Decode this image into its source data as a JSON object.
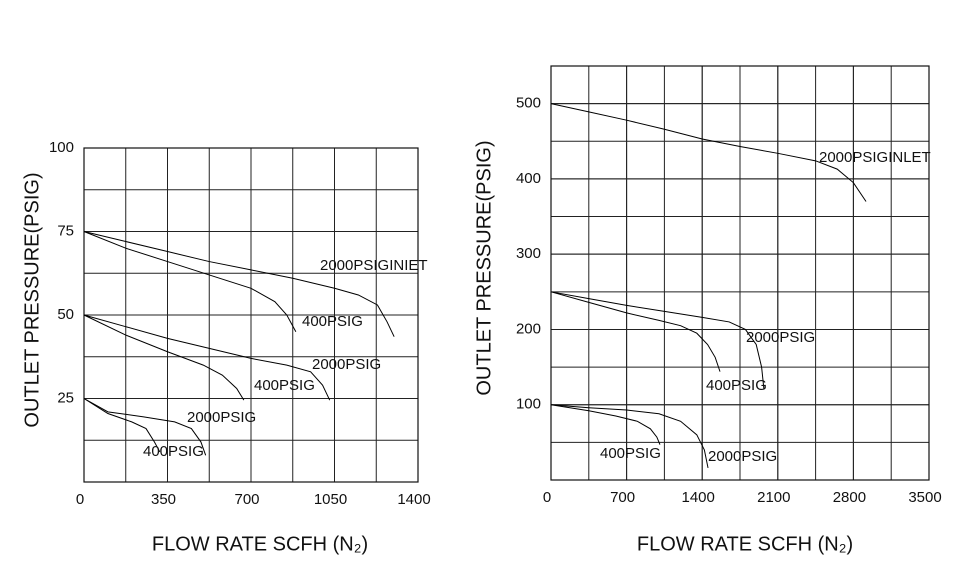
{
  "chart_data": [
    {
      "type": "line",
      "xlabel": "FLOW RATE SCFH (N₂)",
      "ylabel": "OUTLET  PRESSURE(PSIG)",
      "xlim": [
        0,
        1400
      ],
      "ylim": [
        0,
        100
      ],
      "xticks": [
        0,
        350,
        700,
        1050,
        1400
      ],
      "yticks": [
        25,
        50,
        75,
        100
      ],
      "grid": true,
      "minor_grid": true,
      "series": [
        {
          "name": "2000PSIGINIET",
          "color": "#000000",
          "x": [
            0,
            175,
            350,
            525,
            700,
            875,
            1050,
            1150,
            1230,
            1270,
            1300
          ],
          "values": [
            75,
            72,
            69,
            66,
            63.5,
            61,
            58,
            56,
            53,
            48,
            43.5
          ]
        },
        {
          "name": "400PSIG",
          "color": "#000000",
          "x": [
            0,
            175,
            350,
            525,
            700,
            800,
            850,
            888
          ],
          "values": [
            75,
            70,
            66,
            62,
            58,
            54,
            50,
            45
          ]
        },
        {
          "name": "2000PSIG",
          "color": "#000000",
          "x": [
            0,
            175,
            350,
            525,
            700,
            850,
            950,
            1000,
            1030
          ],
          "values": [
            50,
            46.5,
            43,
            40,
            37,
            35,
            33,
            29,
            24.5
          ]
        },
        {
          "name": "400PSIG",
          "color": "#000000",
          "x": [
            0,
            175,
            350,
            500,
            580,
            640,
            670
          ],
          "values": [
            50,
            44,
            39,
            35,
            32,
            28,
            24.5
          ]
        },
        {
          "name": "2000PSIG",
          "color": "#000000",
          "x": [
            0,
            100,
            250,
            380,
            450,
            490,
            510
          ],
          "values": [
            25,
            21,
            19.5,
            18,
            16,
            12,
            8
          ]
        },
        {
          "name": "400PSIG",
          "color": "#000000",
          "x": [
            0,
            100,
            200,
            260,
            295,
            318
          ],
          "values": [
            25,
            20.5,
            18,
            16,
            12,
            9
          ]
        }
      ]
    },
    {
      "type": "line",
      "xlabel": "FLOW RATE SCFH (N₂)",
      "ylabel": "OUTLET  PRESSURE(PSIG)",
      "xlim": [
        0,
        3500
      ],
      "ylim": [
        0,
        550
      ],
      "xticks": [
        0,
        700,
        1400,
        2100,
        2800,
        3500
      ],
      "yticks": [
        100,
        200,
        300,
        400,
        500
      ],
      "grid": true,
      "minor_grid": true,
      "series": [
        {
          "name": "2000PSIGINLET",
          "color": "#000000",
          "x": [
            0,
            350,
            700,
            1050,
            1400,
            1750,
            2100,
            2450,
            2650,
            2800,
            2917
          ],
          "values": [
            500,
            489,
            478,
            466,
            453,
            443,
            434,
            424,
            413,
            395,
            370
          ]
        },
        {
          "name": "2000PSIG",
          "color": "#000000",
          "x": [
            0,
            350,
            700,
            1050,
            1400,
            1650,
            1800,
            1900,
            1950,
            1972
          ],
          "values": [
            250,
            241,
            232,
            224,
            216,
            210,
            200,
            180,
            150,
            120
          ]
        },
        {
          "name": "400PSIG",
          "color": "#000000",
          "x": [
            0,
            350,
            700,
            1000,
            1200,
            1350,
            1450,
            1520,
            1565
          ],
          "values": [
            250,
            236,
            222,
            212,
            205,
            195,
            180,
            163,
            144
          ]
        },
        {
          "name": "2000PSIG",
          "color": "#000000",
          "x": [
            0,
            350,
            700,
            1000,
            1200,
            1350,
            1420,
            1454
          ],
          "values": [
            100,
            96,
            93,
            88,
            78,
            60,
            40,
            16
          ]
        },
        {
          "name": "400PSIG",
          "color": "#000000",
          "x": [
            0,
            350,
            600,
            800,
            920,
            980,
            1009
          ],
          "values": [
            100,
            92,
            85,
            78,
            68,
            57,
            47
          ]
        }
      ]
    }
  ]
}
